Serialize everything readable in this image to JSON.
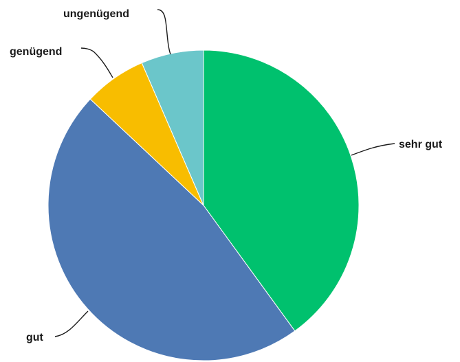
{
  "chart_data": {
    "type": "pie",
    "title": "",
    "start_angle_deg": 0,
    "direction": "clockwise",
    "slices": [
      {
        "label": "sehr gut",
        "value": 40,
        "color": "#00c16e"
      },
      {
        "label": "gut",
        "value": 47,
        "color": "#4e79b4"
      },
      {
        "label": "genügend",
        "value": 6.5,
        "color": "#f8bd00"
      },
      {
        "label": "ungenügend",
        "value": 6.5,
        "color": "#6bc6ca"
      }
    ],
    "legend": "none",
    "labels": "outside with leader lines"
  }
}
